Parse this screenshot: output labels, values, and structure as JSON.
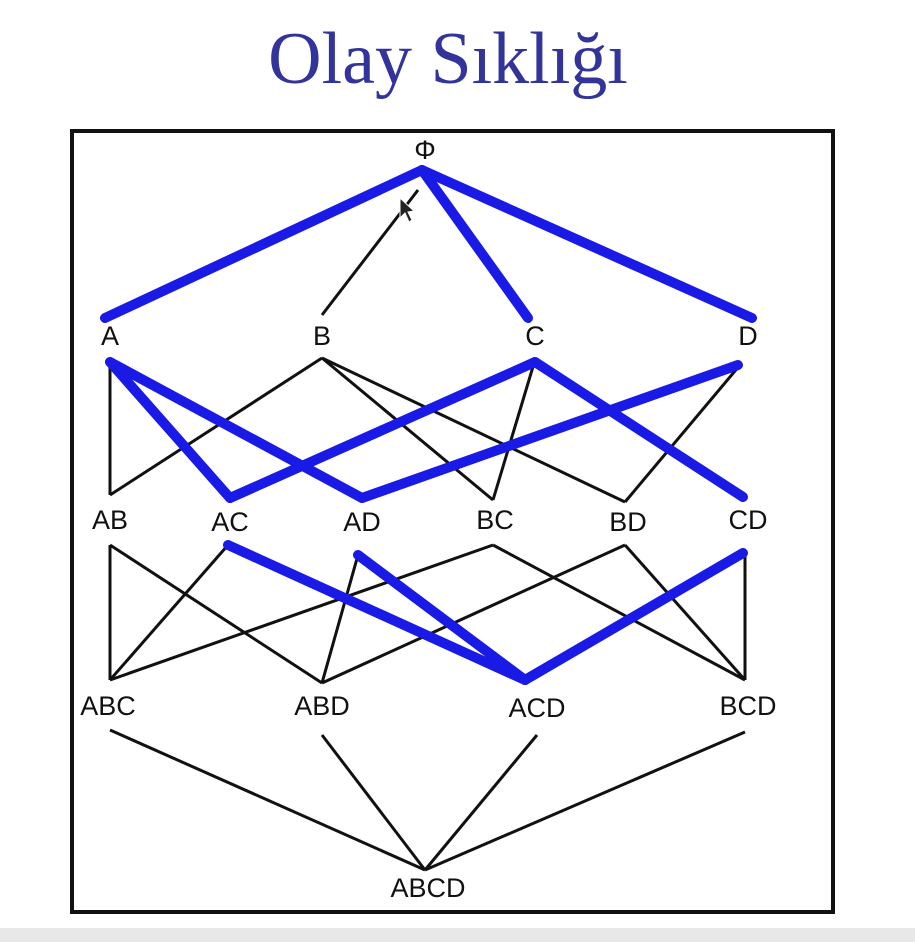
{
  "title": "Olay Sıklığı",
  "nodes": [
    {
      "label": "Φ"
    },
    {
      "label": "A"
    },
    {
      "label": "B"
    },
    {
      "label": "C"
    },
    {
      "label": "D"
    },
    {
      "label": "AB"
    },
    {
      "label": "AC"
    },
    {
      "label": "AD"
    },
    {
      "label": "BC"
    },
    {
      "label": "BD"
    },
    {
      "label": "CD"
    },
    {
      "label": "ABC"
    },
    {
      "label": "ABD"
    },
    {
      "label": "ACD"
    },
    {
      "label": "BCD"
    },
    {
      "label": "ABCD"
    }
  ]
}
